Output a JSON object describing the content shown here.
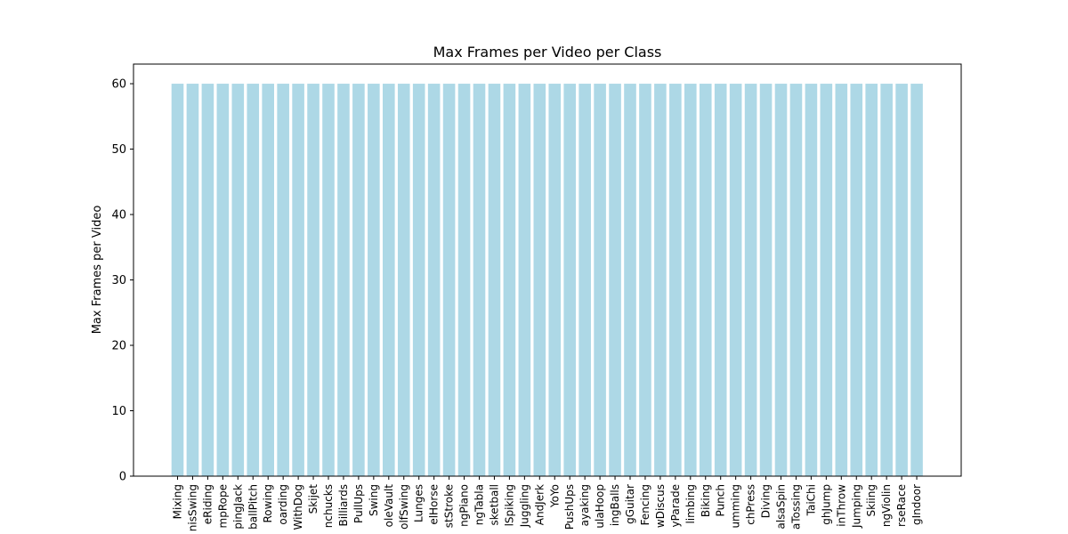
{
  "chart_data": {
    "type": "bar",
    "title": "Max Frames per Video per Class",
    "xlabel": "",
    "ylabel": "Max Frames per Video",
    "ylim": [
      0,
      63
    ],
    "yticks": [
      0,
      10,
      20,
      30,
      40,
      50,
      60
    ],
    "grid": false,
    "bar_color": "#add8e6",
    "categories": [
      "Mixing",
      "nisSwing",
      "eRiding",
      "mpRope",
      "pingJack",
      "ballPitch",
      "Rowing",
      "oarding",
      "WithDog",
      "Skijet",
      "nchucks",
      "Billiards",
      "PullUps",
      "Swing",
      "oleVault",
      "olfSwing",
      "Lunges",
      "elHorse",
      "stStroke",
      "ngPiano",
      "ngTabla",
      "sketball",
      "lSpiking",
      "Juggling",
      "AndJerk",
      "YoYo",
      "PushUps",
      "ayaking",
      "ulaHoop",
      "ingBalls",
      "gGuitar",
      "Fencing",
      "wDiscus",
      "yParade",
      "limbing",
      "Biking",
      "Punch",
      "umming",
      "chPress",
      "Diving",
      "alsaSpin",
      "aTossing",
      "TaiChi",
      "ghJump",
      "inThrow",
      "Jumping",
      "Skiing",
      "ngViolin",
      "rseRace",
      "gIndoor"
    ],
    "values": [
      60,
      60,
      60,
      60,
      60,
      60,
      60,
      60,
      60,
      60,
      60,
      60,
      60,
      60,
      60,
      60,
      60,
      60,
      60,
      60,
      60,
      60,
      60,
      60,
      60,
      60,
      60,
      60,
      60,
      60,
      60,
      60,
      60,
      60,
      60,
      60,
      60,
      60,
      60,
      60,
      60,
      60,
      60,
      60,
      60,
      60,
      60,
      60,
      60,
      60
    ]
  }
}
